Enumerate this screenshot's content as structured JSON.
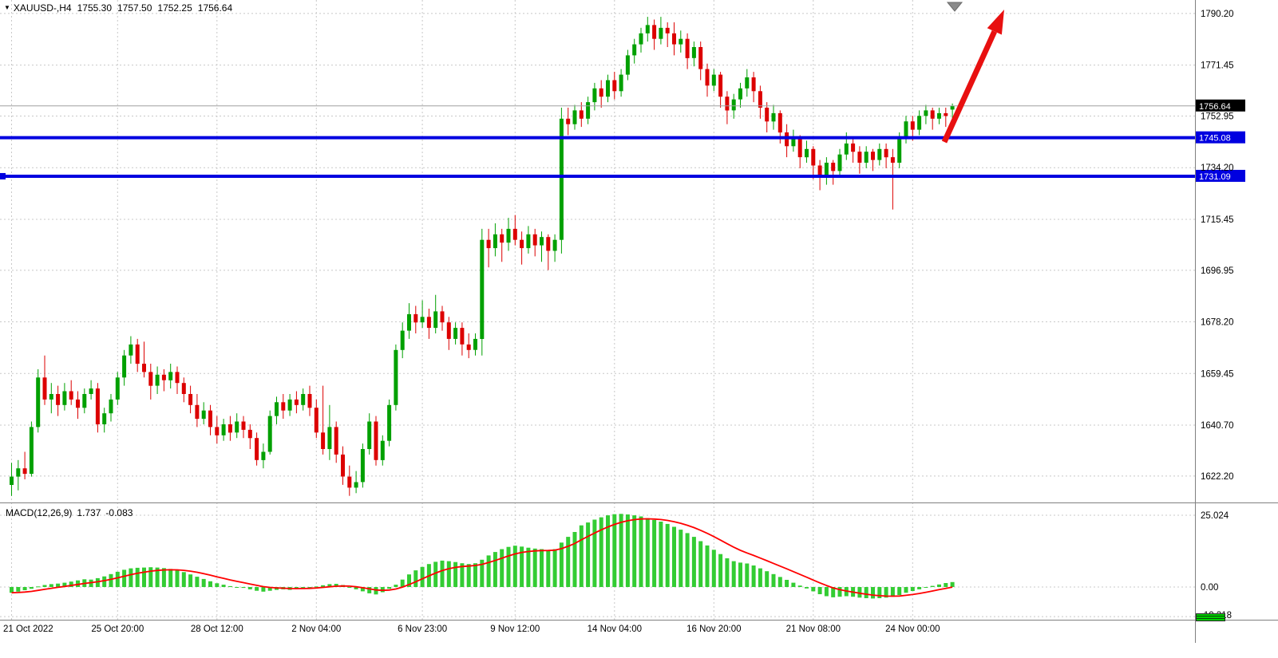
{
  "header": {
    "symbol_period": "XAUUSD-,H4",
    "open": "1755.30",
    "high": "1757.50",
    "low": "1752.25",
    "close": "1756.64"
  },
  "indicator": {
    "name": "MACD(12,26,9)",
    "value": "1.737",
    "signal": "-0.083"
  },
  "icons": {
    "collapse": "▼"
  },
  "colors": {
    "up": "#00A000",
    "down": "#DC0000",
    "macd_bar": "#33CC33",
    "signal": "#FF0000",
    "level": "#0000E0",
    "grid": "#C8C8C8",
    "separator": "#808080",
    "current_line": "#A0A0A0",
    "current_bg": "#000000",
    "label_fg": "#FFFFFF",
    "text": "#000000",
    "arrow": "#E81010",
    "anchor": "#8A8A8A"
  },
  "levels": [
    {
      "label": "1745.08",
      "value": 1745.08
    },
    {
      "label": "1731.09",
      "value": 1731.09,
      "handle": true
    }
  ],
  "current_price": {
    "label": "1756.64",
    "value": 1756.64
  },
  "chart_data": [
    {
      "type": "candlestick",
      "title": "XAUUSD-,H4",
      "ylim": [
        1612.6,
        1795.1
      ],
      "y_ticks": [
        {
          "label": "1790.20",
          "value": 1790.2
        },
        {
          "label": "1771.45",
          "value": 1771.45
        },
        {
          "label": "1752.95",
          "value": 1752.95
        },
        {
          "label": "1734.20",
          "value": 1734.2
        },
        {
          "label": "1715.45",
          "value": 1715.45
        },
        {
          "label": "1696.95",
          "value": 1696.95
        },
        {
          "label": "1678.20",
          "value": 1678.2
        },
        {
          "label": "1659.45",
          "value": 1659.45
        },
        {
          "label": "1640.70",
          "value": 1640.7
        },
        {
          "label": "1622.20",
          "value": 1622.2
        }
      ],
      "x_ticks": [
        {
          "label": "21 Oct 2022",
          "index": 0
        },
        {
          "label": "25 Oct 20:00",
          "index": 16
        },
        {
          "label": "28 Oct 12:00",
          "index": 31
        },
        {
          "label": "2 Nov 04:00",
          "index": 46
        },
        {
          "label": "6 Nov 23:00",
          "index": 62
        },
        {
          "label": "9 Nov 12:00",
          "index": 76
        },
        {
          "label": "14 Nov 04:00",
          "index": 91
        },
        {
          "label": "16 Nov 20:00",
          "index": 106
        },
        {
          "label": "21 Nov 08:00",
          "index": 121
        },
        {
          "label": "24 Nov 00:00",
          "index": 136
        }
      ],
      "ohlc": [
        [
          1619,
          1627,
          1615,
          1622
        ],
        [
          1622,
          1628,
          1617,
          1625
        ],
        [
          1625,
          1631,
          1621,
          1623
        ],
        [
          1623,
          1642,
          1622,
          1640
        ],
        [
          1640,
          1661,
          1638,
          1658
        ],
        [
          1658,
          1666,
          1648,
          1650
        ],
        [
          1650,
          1656,
          1645,
          1652
        ],
        [
          1652,
          1655,
          1644,
          1648
        ],
        [
          1648,
          1656,
          1646,
          1653
        ],
        [
          1653,
          1657,
          1648,
          1650
        ],
        [
          1650,
          1653,
          1643,
          1647
        ],
        [
          1647,
          1654,
          1645,
          1652
        ],
        [
          1652,
          1657,
          1650,
          1654
        ],
        [
          1654,
          1656,
          1638,
          1641
        ],
        [
          1641,
          1647,
          1638,
          1645
        ],
        [
          1645,
          1652,
          1642,
          1650
        ],
        [
          1650,
          1660,
          1648,
          1658
        ],
        [
          1658,
          1668,
          1655,
          1666
        ],
        [
          1666,
          1673,
          1663,
          1670
        ],
        [
          1670,
          1672,
          1660,
          1663
        ],
        [
          1663,
          1671,
          1658,
          1660
        ],
        [
          1660,
          1663,
          1650,
          1655
        ],
        [
          1655,
          1662,
          1652,
          1659
        ],
        [
          1659,
          1661,
          1653,
          1657
        ],
        [
          1657,
          1663,
          1654,
          1660
        ],
        [
          1660,
          1662,
          1652,
          1656
        ],
        [
          1656,
          1658,
          1649,
          1652
        ],
        [
          1652,
          1655,
          1645,
          1648
        ],
        [
          1648,
          1652,
          1640,
          1643
        ],
        [
          1643,
          1649,
          1641,
          1646
        ],
        [
          1646,
          1648,
          1637,
          1640
        ],
        [
          1640,
          1644,
          1634,
          1637
        ],
        [
          1637,
          1643,
          1635,
          1641
        ],
        [
          1641,
          1644,
          1635,
          1638
        ],
        [
          1638,
          1645,
          1636,
          1642
        ],
        [
          1642,
          1644,
          1636,
          1639
        ],
        [
          1639,
          1641,
          1632,
          1636
        ],
        [
          1636,
          1638,
          1626,
          1628
        ],
        [
          1628,
          1634,
          1625,
          1631
        ],
        [
          1631,
          1646,
          1630,
          1644
        ],
        [
          1644,
          1651,
          1641,
          1649
        ],
        [
          1649,
          1652,
          1643,
          1646
        ],
        [
          1646,
          1652,
          1644,
          1650
        ],
        [
          1650,
          1653,
          1645,
          1648
        ],
        [
          1648,
          1654,
          1646,
          1652
        ],
        [
          1652,
          1655,
          1644,
          1647
        ],
        [
          1647,
          1650,
          1636,
          1638
        ],
        [
          1638,
          1655,
          1630,
          1632
        ],
        [
          1632,
          1648,
          1628,
          1640
        ],
        [
          1640,
          1642,
          1627,
          1630
        ],
        [
          1630,
          1633,
          1619,
          1622
        ],
        [
          1622,
          1626,
          1615,
          1618
        ],
        [
          1618,
          1624,
          1616,
          1620
        ],
        [
          1620,
          1634,
          1618,
          1632
        ],
        [
          1632,
          1645,
          1630,
          1642
        ],
        [
          1642,
          1644,
          1626,
          1628
        ],
        [
          1628,
          1637,
          1626,
          1635
        ],
        [
          1635,
          1650,
          1633,
          1648
        ],
        [
          1648,
          1670,
          1646,
          1668
        ],
        [
          1668,
          1678,
          1665,
          1675
        ],
        [
          1675,
          1685,
          1672,
          1681
        ],
        [
          1681,
          1684,
          1674,
          1678
        ],
        [
          1678,
          1686,
          1676,
          1680
        ],
        [
          1680,
          1683,
          1672,
          1676
        ],
        [
          1676,
          1688,
          1674,
          1682
        ],
        [
          1682,
          1684,
          1675,
          1678
        ],
        [
          1678,
          1680,
          1668,
          1672
        ],
        [
          1672,
          1678,
          1670,
          1676
        ],
        [
          1676,
          1678,
          1666,
          1670
        ],
        [
          1670,
          1674,
          1665,
          1668
        ],
        [
          1668,
          1674,
          1666,
          1672
        ],
        [
          1672,
          1712,
          1666,
          1708
        ],
        [
          1708,
          1712,
          1698,
          1705
        ],
        [
          1705,
          1714,
          1702,
          1710
        ],
        [
          1710,
          1712,
          1700,
          1707
        ],
        [
          1707,
          1716,
          1704,
          1712
        ],
        [
          1712,
          1717,
          1706,
          1708
        ],
        [
          1708,
          1711,
          1699,
          1705
        ],
        [
          1705,
          1713,
          1703,
          1710
        ],
        [
          1710,
          1712,
          1702,
          1706
        ],
        [
          1706,
          1711,
          1700,
          1709
        ],
        [
          1709,
          1710,
          1697,
          1704
        ],
        [
          1704,
          1710,
          1700,
          1708
        ],
        [
          1708,
          1756,
          1703,
          1752
        ],
        [
          1752,
          1756,
          1746,
          1750
        ],
        [
          1750,
          1757,
          1748,
          1755
        ],
        [
          1755,
          1758,
          1749,
          1752
        ],
        [
          1752,
          1760,
          1750,
          1758
        ],
        [
          1758,
          1765,
          1755,
          1763
        ],
        [
          1763,
          1766,
          1756,
          1760
        ],
        [
          1760,
          1768,
          1758,
          1766
        ],
        [
          1766,
          1769,
          1759,
          1762
        ],
        [
          1762,
          1770,
          1760,
          1768
        ],
        [
          1768,
          1777,
          1766,
          1775
        ],
        [
          1775,
          1781,
          1772,
          1779
        ],
        [
          1779,
          1785,
          1776,
          1783
        ],
        [
          1783,
          1789,
          1780,
          1786
        ],
        [
          1786,
          1788,
          1777,
          1781
        ],
        [
          1781,
          1789,
          1779,
          1785
        ],
        [
          1785,
          1787,
          1778,
          1783
        ],
        [
          1783,
          1787,
          1775,
          1779
        ],
        [
          1779,
          1784,
          1776,
          1781
        ],
        [
          1781,
          1783,
          1770,
          1774
        ],
        [
          1774,
          1780,
          1771,
          1778
        ],
        [
          1778,
          1780,
          1766,
          1770
        ],
        [
          1770,
          1772,
          1760,
          1764
        ],
        [
          1764,
          1770,
          1762,
          1768
        ],
        [
          1768,
          1769,
          1756,
          1760
        ],
        [
          1760,
          1762,
          1750,
          1755
        ],
        [
          1755,
          1761,
          1752,
          1759
        ],
        [
          1759,
          1765,
          1756,
          1763
        ],
        [
          1763,
          1770,
          1760,
          1767
        ],
        [
          1767,
          1769,
          1758,
          1762
        ],
        [
          1762,
          1764,
          1752,
          1756
        ],
        [
          1756,
          1758,
          1747,
          1751
        ],
        [
          1751,
          1757,
          1748,
          1754
        ],
        [
          1754,
          1755,
          1743,
          1747
        ],
        [
          1747,
          1750,
          1738,
          1742
        ],
        [
          1742,
          1748,
          1740,
          1745
        ],
        [
          1745,
          1746,
          1734,
          1738
        ],
        [
          1738,
          1744,
          1736,
          1741
        ],
        [
          1741,
          1742,
          1730,
          1735
        ],
        [
          1735,
          1737,
          1726,
          1731
        ],
        [
          1731,
          1738,
          1728,
          1736
        ],
        [
          1736,
          1737,
          1728,
          1733
        ],
        [
          1733,
          1741,
          1731,
          1739
        ],
        [
          1739,
          1747,
          1737,
          1743
        ],
        [
          1743,
          1745,
          1736,
          1740
        ],
        [
          1740,
          1742,
          1732,
          1736
        ],
        [
          1736,
          1742,
          1734,
          1740
        ],
        [
          1740,
          1741,
          1733,
          1737
        ],
        [
          1737,
          1743,
          1735,
          1741
        ],
        [
          1741,
          1743,
          1734,
          1738
        ],
        [
          1738,
          1741,
          1719,
          1736
        ],
        [
          1736,
          1747,
          1734,
          1745
        ],
        [
          1745,
          1753,
          1743,
          1751
        ],
        [
          1751,
          1753,
          1744,
          1748
        ],
        [
          1748,
          1755,
          1746,
          1753
        ],
        [
          1753,
          1757,
          1750,
          1755
        ],
        [
          1755,
          1756,
          1748,
          1752
        ],
        [
          1752,
          1756,
          1750,
          1754
        ],
        [
          1754,
          1756,
          1749,
          1753
        ],
        [
          1755.3,
          1757.5,
          1752.25,
          1756.64
        ]
      ]
    },
    {
      "type": "bar+line",
      "name": "MACD(12,26,9)",
      "ylim": [
        -11.4,
        29.2
      ],
      "y_ticks": [
        {
          "label": "25.024",
          "value": 25.024
        },
        {
          "label": "0.00",
          "value": 0
        },
        {
          "label": "-10.318",
          "value": -10.318
        }
      ],
      "signal_period": 9,
      "last_values": {
        "macd": "1.737",
        "signal": "-0.083"
      },
      "macd": [
        -2.0,
        -1.6,
        -1.1,
        -0.6,
        0.2,
        0.7,
        1.0,
        1.2,
        1.5,
        1.9,
        2.3,
        2.7,
        2.6,
        3.1,
        3.7,
        4.5,
        5.3,
        6.0,
        6.5,
        6.7,
        6.8,
        6.9,
        6.8,
        6.6,
        6.3,
        5.8,
        5.2,
        4.4,
        3.6,
        2.8,
        2.0,
        1.3,
        0.8,
        0.3,
        0.0,
        -0.3,
        -0.8,
        -1.3,
        -1.6,
        -1.3,
        -1.0,
        -0.8,
        -1.0,
        -0.7,
        -0.4,
        -0.2,
        0.2,
        0.6,
        1.0,
        1.1,
        0.7,
        0.0,
        -0.8,
        -1.5,
        -2.2,
        -2.6,
        -1.8,
        -0.6,
        0.8,
        2.6,
        4.4,
        5.8,
        7.0,
        8.0,
        8.8,
        9.2,
        9.0,
        8.7,
        8.3,
        8.0,
        8.3,
        9.5,
        11.0,
        12.2,
        13.2,
        14.0,
        14.4,
        14.1,
        13.7,
        13.4,
        13.2,
        12.9,
        13.2,
        15.5,
        17.5,
        19.2,
        21.5,
        22.5,
        23.5,
        24.3,
        25.0,
        25.4,
        25.5,
        25.3,
        25.0,
        24.6,
        24.0,
        23.4,
        22.8,
        22.0,
        21.0,
        20.0,
        18.8,
        17.5,
        16.0,
        14.5,
        13.0,
        11.5,
        10.0,
        9.0,
        8.5,
        8.2,
        7.5,
        6.5,
        5.5,
        4.5,
        3.5,
        2.5,
        1.5,
        0.5,
        -0.5,
        -1.5,
        -2.5,
        -3.2,
        -3.6,
        -3.4,
        -3.2,
        -3.4,
        -3.7,
        -3.9,
        -4.0,
        -3.9,
        -3.7,
        -3.4,
        -2.8,
        -2.0,
        -1.4,
        -0.8,
        -0.2,
        0.4,
        0.9,
        1.4,
        1.737
      ]
    }
  ]
}
